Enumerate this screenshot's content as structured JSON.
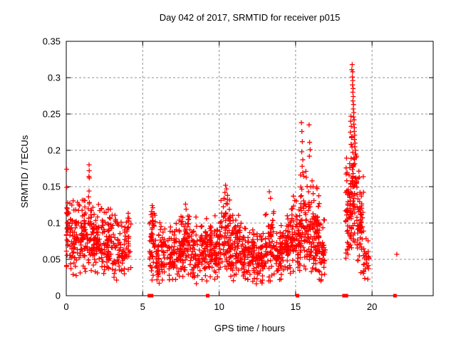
{
  "chart_data": {
    "type": "scatter",
    "title": "Day 042 of 2017, SRMTID for receiver p015",
    "xlabel": "GPS time / hours",
    "ylabel": "SRMTID / TECUs",
    "xlim": [
      0,
      24
    ],
    "ylim": [
      0,
      0.35
    ],
    "xticks": [
      {
        "v": 0,
        "label": "0"
      },
      {
        "v": 5,
        "label": "5"
      },
      {
        "v": 10,
        "label": "10"
      },
      {
        "v": 15,
        "label": "15"
      },
      {
        "v": 20,
        "label": "20"
      }
    ],
    "yticks": [
      {
        "v": 0,
        "label": "0"
      },
      {
        "v": 0.05,
        "label": "0.05"
      },
      {
        "v": 0.1,
        "label": "0.1"
      },
      {
        "v": 0.15,
        "label": "0.15"
      },
      {
        "v": 0.2,
        "label": "0.2"
      },
      {
        "v": 0.25,
        "label": "0.25"
      },
      {
        "v": 0.3,
        "label": "0.3"
      },
      {
        "v": 0.35,
        "label": "0.35"
      }
    ],
    "grid": true,
    "legend": "none",
    "marker": "plus",
    "marker_color": "#ff0000",
    "grid_color": "#909090",
    "border_color": "#000000",
    "seed": 20170042,
    "notable_points": [
      [
        0.03,
        0.174
      ],
      [
        0.03,
        0.149
      ],
      [
        0.04,
        0.121
      ],
      [
        0.05,
        0.113
      ],
      [
        1.49,
        0.18
      ],
      [
        1.5,
        0.172
      ],
      [
        1.48,
        0.164
      ],
      [
        1.51,
        0.162
      ],
      [
        1.49,
        0.144
      ],
      [
        1.46,
        0.136
      ],
      [
        5.62,
        0.124
      ],
      [
        5.66,
        0.121
      ],
      [
        7.8,
        0.126
      ],
      [
        7.84,
        0.119
      ],
      [
        10.42,
        0.152
      ],
      [
        10.48,
        0.147
      ],
      [
        10.38,
        0.142
      ],
      [
        10.55,
        0.138
      ],
      [
        10.32,
        0.134
      ],
      [
        10.12,
        0.131
      ],
      [
        13.28,
        0.143
      ],
      [
        13.36,
        0.134
      ],
      [
        14.85,
        0.137
      ],
      [
        14.95,
        0.131
      ],
      [
        15.38,
        0.238
      ],
      [
        15.41,
        0.226
      ],
      [
        15.44,
        0.212
      ],
      [
        15.4,
        0.198
      ],
      [
        15.47,
        0.187
      ],
      [
        15.43,
        0.178
      ],
      [
        15.88,
        0.235
      ],
      [
        15.92,
        0.211
      ],
      [
        15.95,
        0.201
      ],
      [
        15.9,
        0.192
      ],
      [
        16.08,
        0.158
      ],
      [
        16.14,
        0.15
      ],
      [
        18.62,
        0.247
      ],
      [
        18.6,
        0.24
      ],
      [
        18.64,
        0.233
      ],
      [
        18.58,
        0.225
      ],
      [
        18.66,
        0.218
      ],
      [
        18.7,
        0.318
      ],
      [
        18.68,
        0.311
      ],
      [
        18.73,
        0.308
      ],
      [
        18.71,
        0.301
      ],
      [
        18.74,
        0.296
      ],
      [
        18.72,
        0.29
      ],
      [
        18.76,
        0.285
      ],
      [
        18.74,
        0.28
      ],
      [
        18.77,
        0.274
      ],
      [
        18.75,
        0.268
      ],
      [
        18.79,
        0.263
      ],
      [
        18.77,
        0.257
      ],
      [
        18.81,
        0.252
      ],
      [
        18.79,
        0.246
      ],
      [
        18.83,
        0.242
      ],
      [
        18.81,
        0.236
      ],
      [
        18.85,
        0.231
      ],
      [
        18.83,
        0.226
      ],
      [
        18.87,
        0.221
      ],
      [
        18.85,
        0.215
      ],
      [
        18.89,
        0.21
      ],
      [
        18.87,
        0.205
      ],
      [
        18.91,
        0.2
      ],
      [
        18.93,
        0.195
      ],
      [
        18.95,
        0.19
      ],
      [
        21.62,
        0.057
      ]
    ],
    "zero_value_markers": [
      5.44,
      5.58,
      9.25,
      15.12,
      18.17,
      18.32,
      21.5
    ],
    "clusters": [
      {
        "x0": 0.0,
        "x1": 0.12,
        "n": 16,
        "mean": 0.085,
        "sd": 0.03,
        "min": 0.04,
        "max": 0.13
      },
      {
        "x0": 0.1,
        "x1": 1.35,
        "n": 135,
        "mean": 0.082,
        "sd": 0.025,
        "min": 0.026,
        "max": 0.132,
        "columns": [
          0.3,
          0.6,
          0.95,
          1.2
        ]
      },
      {
        "x0": 1.35,
        "x1": 1.75,
        "n": 40,
        "mean": 0.085,
        "sd": 0.028,
        "min": 0.03,
        "max": 0.13
      },
      {
        "x0": 1.7,
        "x1": 3.05,
        "n": 150,
        "mean": 0.078,
        "sd": 0.024,
        "min": 0.024,
        "max": 0.13,
        "columns": [
          1.85,
          2.15,
          2.45,
          2.75
        ]
      },
      {
        "x0": 3.0,
        "x1": 4.25,
        "n": 95,
        "mean": 0.068,
        "sd": 0.022,
        "min": 0.02,
        "max": 0.118,
        "columns": [
          3.2,
          3.5,
          3.8,
          4.05
        ]
      },
      {
        "x0": 5.45,
        "x1": 5.85,
        "n": 50,
        "mean": 0.075,
        "sd": 0.028,
        "min": 0.02,
        "max": 0.124
      },
      {
        "x0": 5.8,
        "x1": 6.6,
        "n": 75,
        "mean": 0.06,
        "sd": 0.024,
        "min": 0.016,
        "max": 0.112,
        "columns": [
          5.95,
          6.3
        ]
      },
      {
        "x0": 6.6,
        "x1": 7.5,
        "n": 90,
        "mean": 0.055,
        "sd": 0.022,
        "min": 0.015,
        "max": 0.105,
        "columns": [
          6.75,
          7.05,
          7.35
        ]
      },
      {
        "x0": 7.5,
        "x1": 8.1,
        "n": 70,
        "mean": 0.065,
        "sd": 0.026,
        "min": 0.02,
        "max": 0.126
      },
      {
        "x0": 8.1,
        "x1": 9.25,
        "n": 110,
        "mean": 0.06,
        "sd": 0.022,
        "min": 0.016,
        "max": 0.112,
        "columns": [
          8.3,
          8.6,
          8.9,
          9.1
        ]
      },
      {
        "x0": 9.3,
        "x1": 10.15,
        "n": 95,
        "mean": 0.065,
        "sd": 0.022,
        "min": 0.02,
        "max": 0.118,
        "columns": [
          9.45,
          9.75,
          10.0
        ]
      },
      {
        "x0": 10.15,
        "x1": 10.75,
        "n": 70,
        "mean": 0.082,
        "sd": 0.028,
        "min": 0.026,
        "max": 0.148
      },
      {
        "x0": 10.7,
        "x1": 11.4,
        "n": 80,
        "mean": 0.065,
        "sd": 0.024,
        "min": 0.02,
        "max": 0.126,
        "columns": [
          10.9,
          11.2
        ]
      },
      {
        "x0": 11.4,
        "x1": 13.0,
        "n": 160,
        "mean": 0.054,
        "sd": 0.018,
        "min": 0.013,
        "max": 0.1,
        "columns": [
          11.6,
          11.9,
          12.2,
          12.5,
          12.8
        ]
      },
      {
        "x0": 13.0,
        "x1": 13.6,
        "n": 60,
        "mean": 0.068,
        "sd": 0.026,
        "min": 0.02,
        "max": 0.13
      },
      {
        "x0": 13.6,
        "x1": 14.35,
        "n": 70,
        "mean": 0.06,
        "sd": 0.02,
        "min": 0.02,
        "max": 0.11,
        "columns": [
          13.8,
          14.1
        ]
      },
      {
        "x0": 14.3,
        "x1": 15.0,
        "n": 70,
        "mean": 0.075,
        "sd": 0.024,
        "min": 0.03,
        "max": 0.13,
        "columns": [
          14.5,
          14.8
        ]
      },
      {
        "x0": 15.0,
        "x1": 15.35,
        "n": 45,
        "mean": 0.08,
        "sd": 0.026,
        "min": 0.03,
        "max": 0.14
      },
      {
        "x0": 15.3,
        "x1": 15.68,
        "n": 40,
        "mean": 0.1,
        "sd": 0.035,
        "min": 0.04,
        "max": 0.175
      },
      {
        "x0": 15.65,
        "x1": 16.05,
        "n": 45,
        "mean": 0.09,
        "sd": 0.04,
        "min": 0.03,
        "max": 0.185
      },
      {
        "x0": 16.0,
        "x1": 16.55,
        "n": 70,
        "mean": 0.085,
        "sd": 0.03,
        "min": 0.03,
        "max": 0.155,
        "columns": [
          16.15,
          16.4
        ]
      },
      {
        "x0": 16.5,
        "x1": 16.95,
        "n": 48,
        "mean": 0.055,
        "sd": 0.024,
        "min": 0.013,
        "max": 0.105
      },
      {
        "x0": 18.25,
        "x1": 18.6,
        "n": 55,
        "mean": 0.115,
        "sd": 0.035,
        "min": 0.05,
        "max": 0.19
      },
      {
        "x0": 18.55,
        "x1": 19.05,
        "n": 80,
        "mean": 0.145,
        "sd": 0.045,
        "min": 0.06,
        "max": 0.24,
        "columns": [
          18.7,
          18.85
        ]
      },
      {
        "x0": 19.0,
        "x1": 19.45,
        "n": 60,
        "mean": 0.1,
        "sd": 0.035,
        "min": 0.03,
        "max": 0.18
      },
      {
        "x0": 19.4,
        "x1": 19.8,
        "n": 25,
        "mean": 0.05,
        "sd": 0.02,
        "min": 0.016,
        "max": 0.095
      }
    ]
  }
}
